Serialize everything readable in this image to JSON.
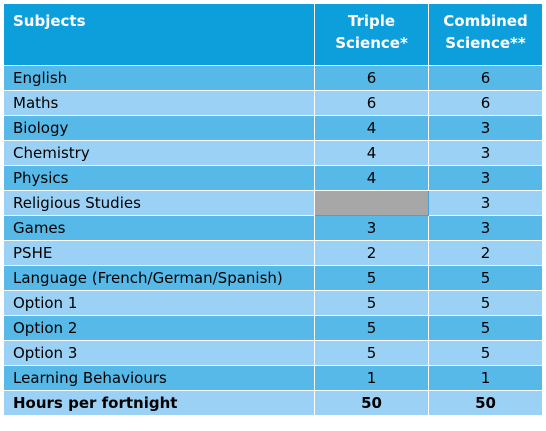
{
  "header": {
    "subjects": "Subjects",
    "triple": [
      "Triple",
      "Science*"
    ],
    "combined": [
      "Combined",
      "Science**"
    ]
  },
  "rows": [
    {
      "subject": "English",
      "triple": "6",
      "combined": "6"
    },
    {
      "subject": "Maths",
      "triple": "6",
      "combined": "6"
    },
    {
      "subject": "Biology",
      "triple": "4",
      "combined": "3"
    },
    {
      "subject": "Chemistry",
      "triple": "4",
      "combined": "3"
    },
    {
      "subject": "Physics",
      "triple": "4",
      "combined": "3"
    },
    {
      "subject": "Religious Studies",
      "triple": "",
      "combined": "3"
    },
    {
      "subject": "Games",
      "triple": "3",
      "combined": "3"
    },
    {
      "subject": "PSHE",
      "triple": "2",
      "combined": "2"
    },
    {
      "subject": "Language (French/German/Spanish)",
      "triple": "5",
      "combined": "5"
    },
    {
      "subject": "Option 1",
      "triple": "5",
      "combined": "5"
    },
    {
      "subject": "Option 2",
      "triple": "5",
      "combined": "5"
    },
    {
      "subject": "Option 3",
      "triple": "5",
      "combined": "5"
    },
    {
      "subject": "Learning Behaviours",
      "triple": "1",
      "combined": "1"
    }
  ],
  "total": {
    "subject": "Hours per fortnight",
    "triple": "50",
    "combined": "50"
  },
  "colors": {
    "header": "#0d9fdc",
    "row_dark": "#56b9e7",
    "row_light": "#9bd1f4",
    "blank_cell": "#a7a7a7"
  }
}
